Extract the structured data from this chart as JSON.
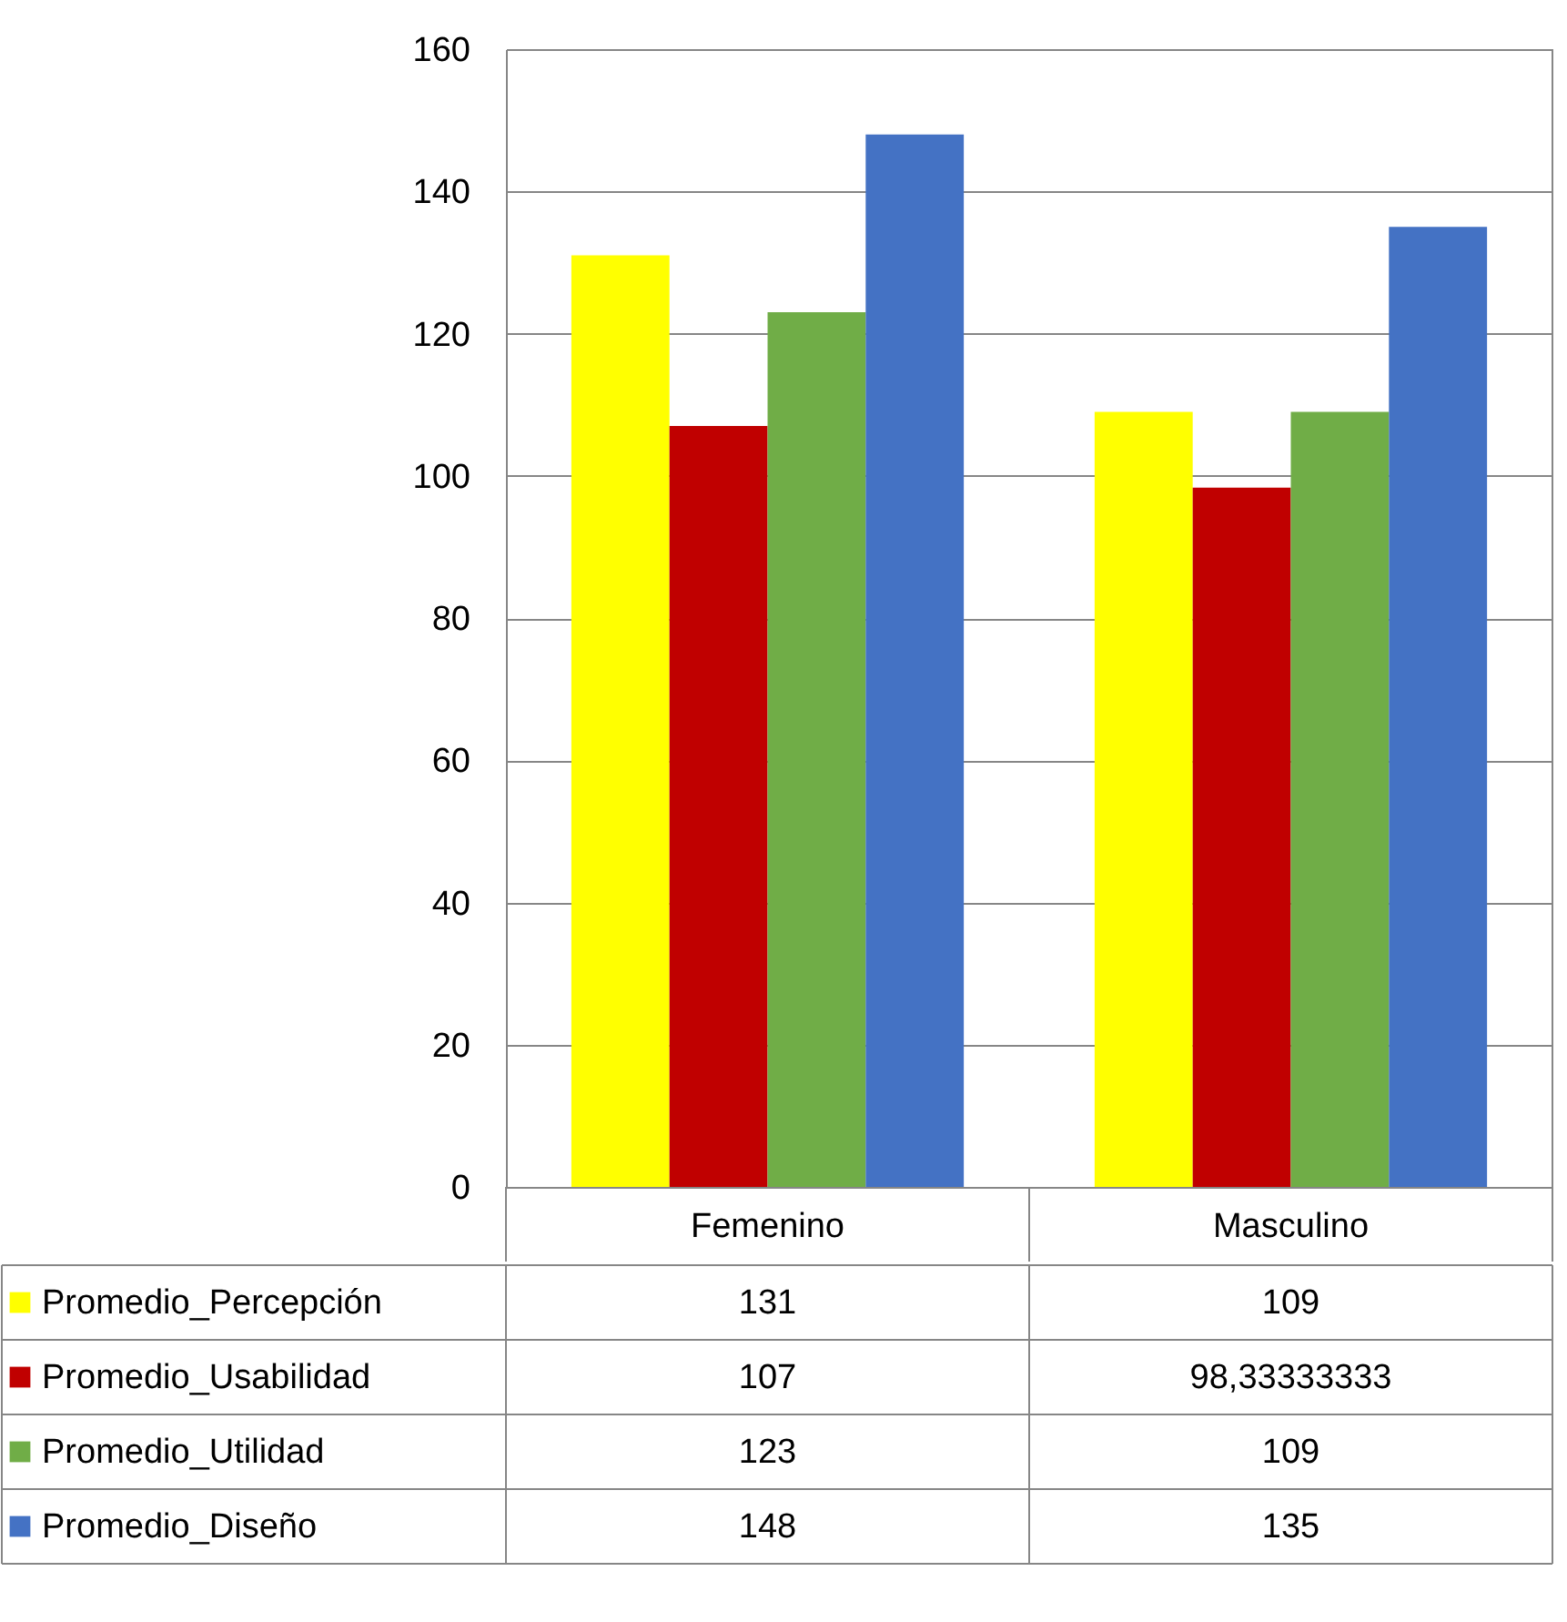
{
  "chart_data": {
    "type": "bar",
    "categories": [
      "Femenino",
      "Masculino"
    ],
    "series": [
      {
        "name": "Promedio_Percepción",
        "color": "#ffff00",
        "values": [
          131,
          109
        ],
        "value_labels": [
          "131",
          "109"
        ]
      },
      {
        "name": "Promedio_Usabilidad",
        "color": "#c00000",
        "values": [
          107,
          98.33333333
        ],
        "value_labels": [
          "107",
          "98,33333333"
        ]
      },
      {
        "name": "Promedio_Utilidad",
        "color": "#70ad47",
        "values": [
          123,
          109
        ],
        "value_labels": [
          "123",
          "109"
        ]
      },
      {
        "name": "Promedio_Diseño",
        "color": "#4472c4",
        "values": [
          148,
          135
        ],
        "value_labels": [
          "148",
          "135"
        ]
      }
    ],
    "ylim": [
      0,
      160
    ],
    "yticks": [
      0,
      20,
      40,
      60,
      80,
      100,
      120,
      140,
      160
    ],
    "grid": "y",
    "legend": "bottom"
  }
}
